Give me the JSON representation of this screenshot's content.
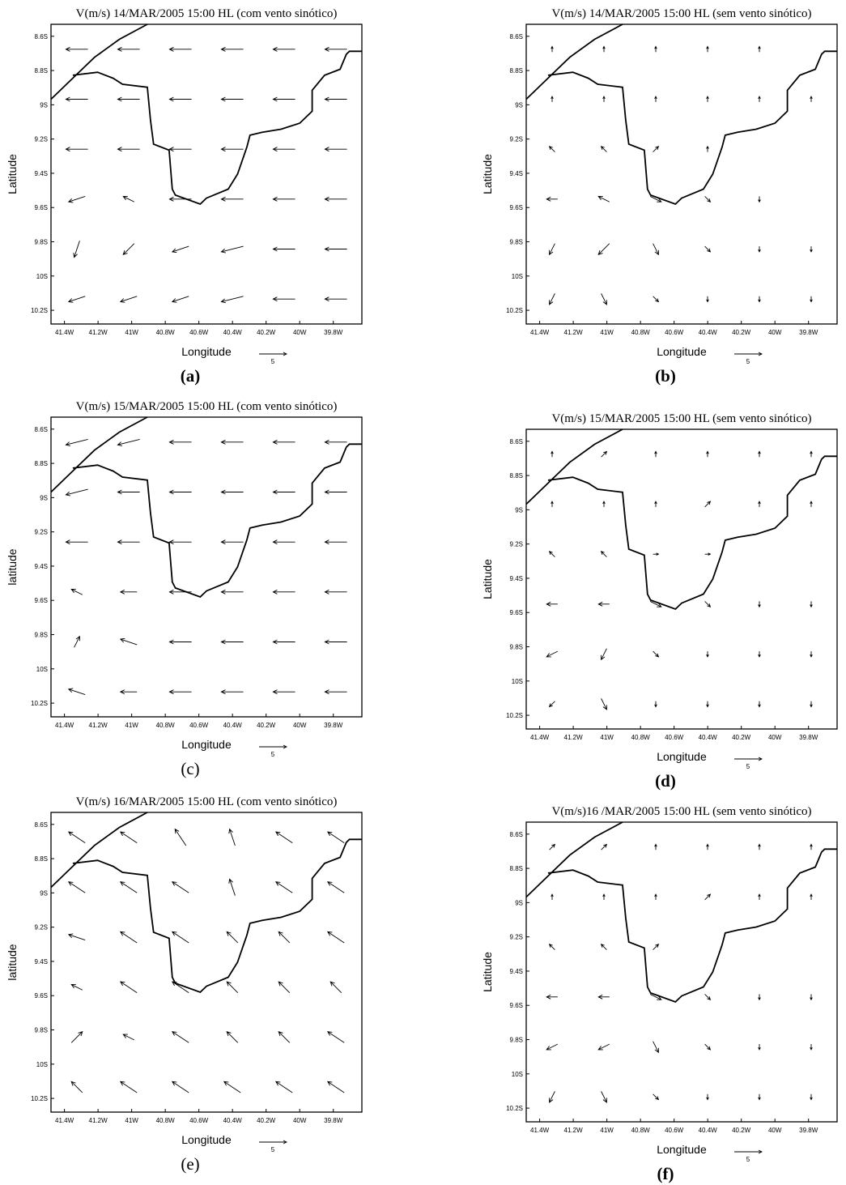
{
  "chart_data": [
    {
      "type": "quiver",
      "title": "V(m/s) 14/MAR/2005 15:00 HL (com vento sinótico)",
      "xlabel": "Longitude",
      "ylabel": "Latitude",
      "caption": "(a)",
      "xlim": [
        -41.48,
        -39.63
      ],
      "ylim": [
        -10.28,
        -8.53
      ],
      "xticks": [
        {
          "value": -41.4,
          "label": "41.4W"
        },
        {
          "value": -41.2,
          "label": "41.2W"
        },
        {
          "value": -41,
          "label": "41W"
        },
        {
          "value": -40.8,
          "label": "40.8W"
        },
        {
          "value": -40.6,
          "label": "40.6W"
        },
        {
          "value": -40.4,
          "label": "40.4W"
        },
        {
          "value": -40.2,
          "label": "40.2W"
        },
        {
          "value": -40,
          "label": "40W"
        },
        {
          "value": -39.8,
          "label": "39.8W"
        }
      ],
      "yticks": [
        {
          "value": -8.6,
          "label": "8.6S"
        },
        {
          "value": -8.8,
          "label": "8.8S"
        },
        {
          "value": -9,
          "label": "9S"
        },
        {
          "value": -9.2,
          "label": "9.2S"
        },
        {
          "value": -9.4,
          "label": "9.4S"
        },
        {
          "value": -9.6,
          "label": "9.6S"
        },
        {
          "value": -9.8,
          "label": "9.8S"
        },
        {
          "value": -10,
          "label": "10S"
        },
        {
          "value": -10.2,
          "label": "10.2S"
        }
      ],
      "ref_vector": 5,
      "u": [
        [
          -4,
          -4,
          -4,
          -4,
          -4,
          -4
        ],
        [
          -4,
          -4,
          -4,
          -4,
          -4,
          -4
        ],
        [
          -4,
          -4,
          -4,
          -4,
          -4,
          -4
        ],
        [
          -3,
          -2,
          -4,
          -4,
          -4,
          -4
        ],
        [
          -1,
          -2,
          -3,
          -4,
          -4,
          -4
        ],
        [
          -3,
          -3,
          -3,
          -4,
          -4,
          -4
        ]
      ],
      "v": [
        [
          0,
          0,
          0,
          0,
          0,
          0
        ],
        [
          0,
          0,
          0,
          0,
          0,
          0
        ],
        [
          0,
          0,
          0,
          0,
          0,
          0
        ],
        [
          -1,
          1,
          0,
          0,
          0,
          0
        ],
        [
          -3,
          -2,
          -1,
          -1,
          0,
          0
        ],
        [
          -1,
          -1,
          -1,
          -1,
          0,
          0
        ]
      ]
    },
    {
      "type": "quiver",
      "title": "V(m/s) 14/MAR/2005 15:00 HL (sem vento sinótico)",
      "xlabel": "Longitude",
      "ylabel": "Latitude",
      "caption": "(b)",
      "xlim": [
        -41.48,
        -39.63
      ],
      "ylim": [
        -10.28,
        -8.53
      ],
      "xticks": [
        {
          "value": -41.4,
          "label": "41.4W"
        },
        {
          "value": -41.2,
          "label": "41.2W"
        },
        {
          "value": -41,
          "label": "41W"
        },
        {
          "value": -40.8,
          "label": "40.8W"
        },
        {
          "value": -40.6,
          "label": "40.6W"
        },
        {
          "value": -40.4,
          "label": "40.4W"
        },
        {
          "value": -40.2,
          "label": "40.2W"
        },
        {
          "value": -40,
          "label": "40W"
        },
        {
          "value": -39.8,
          "label": "39.8W"
        }
      ],
      "yticks": [
        {
          "value": -8.6,
          "label": "8.6S"
        },
        {
          "value": -8.8,
          "label": "8.8S"
        },
        {
          "value": -9,
          "label": "9S"
        },
        {
          "value": -9.2,
          "label": "9.2S"
        },
        {
          "value": -9.4,
          "label": "9.4S"
        },
        {
          "value": -9.6,
          "label": "9.6S"
        },
        {
          "value": -9.8,
          "label": "9.8S"
        },
        {
          "value": -10,
          "label": "10S"
        },
        {
          "value": -10.2,
          "label": "10.2S"
        }
      ],
      "ref_vector": 5,
      "u": [
        [
          0,
          0,
          0,
          0,
          0,
          0
        ],
        [
          0,
          0,
          0,
          0,
          0,
          0
        ],
        [
          -1,
          -1,
          1,
          0,
          0,
          0
        ],
        [
          -2,
          -2,
          2,
          1,
          0,
          0
        ],
        [
          -1,
          -2,
          1,
          1,
          0,
          0
        ],
        [
          -1,
          1,
          1,
          0,
          0,
          0
        ]
      ],
      "v": [
        [
          1,
          1,
          1,
          1,
          1,
          0
        ],
        [
          1,
          1,
          1,
          1,
          1,
          1
        ],
        [
          1,
          1,
          1,
          1,
          0,
          0
        ],
        [
          0,
          1,
          -1,
          -1,
          -1,
          0
        ],
        [
          -2,
          -2,
          -2,
          -1,
          -1,
          -1
        ],
        [
          -2,
          -2,
          -1,
          -1,
          -1,
          -1
        ]
      ]
    },
    {
      "type": "quiver",
      "title": "V(m/s) 15/MAR/2005 15:00 HL (com vento sinótico)",
      "xlabel": "Longitude",
      "ylabel": "latitude",
      "caption": "(c)",
      "xlim": [
        -41.48,
        -39.63
      ],
      "ylim": [
        -10.28,
        -8.53
      ],
      "xticks": [
        {
          "value": -41.4,
          "label": "41.4W"
        },
        {
          "value": -41.2,
          "label": "41.2W"
        },
        {
          "value": -41,
          "label": "41W"
        },
        {
          "value": -40.8,
          "label": "40.8W"
        },
        {
          "value": -40.6,
          "label": "40.6W"
        },
        {
          "value": -40.4,
          "label": "40.4W"
        },
        {
          "value": -40.2,
          "label": "40.2W"
        },
        {
          "value": -40,
          "label": "40W"
        },
        {
          "value": -39.8,
          "label": "39.8W"
        }
      ],
      "yticks": [
        {
          "value": -8.6,
          "label": "8.6S"
        },
        {
          "value": -8.8,
          "label": "8.8S"
        },
        {
          "value": -9,
          "label": "9S"
        },
        {
          "value": -9.2,
          "label": "9.2S"
        },
        {
          "value": -9.4,
          "label": "9.4S"
        },
        {
          "value": -9.6,
          "label": "9.6S"
        },
        {
          "value": -9.8,
          "label": "9.8S"
        },
        {
          "value": -10,
          "label": "10S"
        },
        {
          "value": -10.2,
          "label": "10.2S"
        }
      ],
      "ref_vector": 5,
      "u": [
        [
          -4,
          -4,
          -4,
          -4,
          -4,
          -4
        ],
        [
          -4,
          -4,
          -4,
          -4,
          -4,
          -4
        ],
        [
          -4,
          -4,
          -4,
          -4,
          -4,
          -4
        ],
        [
          -2,
          -3,
          -4,
          -4,
          -4,
          -4
        ],
        [
          1,
          -3,
          -4,
          -4,
          -4,
          -4
        ],
        [
          -3,
          -3,
          -4,
          -4,
          -4,
          -4
        ]
      ],
      "v": [
        [
          -1,
          -1,
          0,
          0,
          0,
          0
        ],
        [
          -1,
          0,
          0,
          0,
          0,
          0
        ],
        [
          0,
          0,
          0,
          0,
          0,
          0
        ],
        [
          1,
          0,
          0,
          0,
          0,
          0
        ],
        [
          2,
          1,
          0,
          0,
          0,
          0
        ],
        [
          1,
          0,
          0,
          0,
          0,
          0
        ]
      ]
    },
    {
      "type": "quiver",
      "title": "V(m/s) 15/MAR/2005 15:00 HL (sem vento sinótico)",
      "xlabel": "Longitude",
      "ylabel": "Latitude",
      "caption": "(d)",
      "xlim": [
        -41.48,
        -39.63
      ],
      "ylim": [
        -10.28,
        -8.53
      ],
      "xticks": [
        {
          "value": -41.4,
          "label": "41.4W"
        },
        {
          "value": -41.2,
          "label": "41.2W"
        },
        {
          "value": -41,
          "label": "41W"
        },
        {
          "value": -40.8,
          "label": "40.8W"
        },
        {
          "value": -40.6,
          "label": "40.6W"
        },
        {
          "value": -40.4,
          "label": "40.4W"
        },
        {
          "value": -40.2,
          "label": "40.2W"
        },
        {
          "value": -40,
          "label": "40W"
        },
        {
          "value": -39.8,
          "label": "39.8W"
        }
      ],
      "yticks": [
        {
          "value": -8.6,
          "label": "8.6S"
        },
        {
          "value": -8.8,
          "label": "8.8S"
        },
        {
          "value": -9,
          "label": "9S"
        },
        {
          "value": -9.2,
          "label": "9.2S"
        },
        {
          "value": -9.4,
          "label": "9.4S"
        },
        {
          "value": -9.6,
          "label": "9.6S"
        },
        {
          "value": -9.8,
          "label": "9.8S"
        },
        {
          "value": -10,
          "label": "10S"
        },
        {
          "value": -10.2,
          "label": "10.2S"
        }
      ],
      "ref_vector": 5,
      "u": [
        [
          0,
          1,
          0,
          0,
          0,
          0
        ],
        [
          0,
          0,
          0,
          1,
          0,
          0
        ],
        [
          -1,
          -1,
          1,
          1,
          0,
          0
        ],
        [
          -2,
          -2,
          2,
          1,
          0,
          0
        ],
        [
          -2,
          -1,
          1,
          0,
          0,
          0
        ],
        [
          -1,
          1,
          0,
          0,
          0,
          0
        ]
      ],
      "v": [
        [
          1,
          1,
          1,
          1,
          1,
          1
        ],
        [
          1,
          1,
          1,
          1,
          1,
          1
        ],
        [
          1,
          1,
          0,
          0,
          0,
          0
        ],
        [
          0,
          0,
          -1,
          -1,
          -1,
          -1
        ],
        [
          -1,
          -2,
          -1,
          -1,
          -1,
          -1
        ],
        [
          -1,
          -2,
          -1,
          -1,
          -1,
          -1
        ]
      ]
    },
    {
      "type": "quiver",
      "title": "V(m/s) 16/MAR/2005 15:00 HL (com vento sinótico)",
      "xlabel": "Longitude",
      "ylabel": "latitude",
      "caption": "(e)",
      "xlim": [
        -41.48,
        -39.63
      ],
      "ylim": [
        -10.28,
        -8.53
      ],
      "xticks": [
        {
          "value": -41.4,
          "label": "41.4W"
        },
        {
          "value": -41.2,
          "label": "41.2W"
        },
        {
          "value": -41,
          "label": "41W"
        },
        {
          "value": -40.8,
          "label": "40.8W"
        },
        {
          "value": -40.6,
          "label": "40.6W"
        },
        {
          "value": -40.4,
          "label": "40.4W"
        },
        {
          "value": -40.2,
          "label": "40.2W"
        },
        {
          "value": -40,
          "label": "40W"
        },
        {
          "value": -39.8,
          "label": "39.8W"
        }
      ],
      "yticks": [
        {
          "value": -8.6,
          "label": "8.6S"
        },
        {
          "value": -8.8,
          "label": "8.8S"
        },
        {
          "value": -9,
          "label": "9S"
        },
        {
          "value": -9.2,
          "label": "9.2S"
        },
        {
          "value": -9.4,
          "label": "9.4S"
        },
        {
          "value": -9.6,
          "label": "9.6S"
        },
        {
          "value": -9.8,
          "label": "9.8S"
        },
        {
          "value": -10,
          "label": "10S"
        },
        {
          "value": -10.2,
          "label": "10.2S"
        }
      ],
      "ref_vector": 5,
      "u": [
        [
          -3,
          -3,
          -2,
          -1,
          -3,
          -3
        ],
        [
          -3,
          -3,
          -3,
          -1,
          -3,
          -3
        ],
        [
          -3,
          -3,
          -3,
          -2,
          -2,
          -3
        ],
        [
          -2,
          -3,
          -3,
          -2,
          -2,
          -2
        ],
        [
          2,
          -2,
          -3,
          -2,
          -2,
          -3
        ],
        [
          -2,
          -3,
          -3,
          -3,
          -3,
          -3
        ]
      ],
      "v": [
        [
          2,
          2,
          3,
          3,
          2,
          2
        ],
        [
          2,
          2,
          2,
          3,
          2,
          2
        ],
        [
          1,
          2,
          2,
          2,
          2,
          2
        ],
        [
          1,
          2,
          2,
          2,
          2,
          2
        ],
        [
          2,
          1,
          2,
          2,
          2,
          2
        ],
        [
          2,
          2,
          2,
          2,
          2,
          2
        ]
      ]
    },
    {
      "type": "quiver",
      "title": "V(m/s)16 /MAR/2005 15:00 HL (sem vento sinótico)",
      "xlabel": "Longitude",
      "ylabel": "Latitude",
      "caption": "(f)",
      "xlim": [
        -41.48,
        -39.63
      ],
      "ylim": [
        -10.28,
        -8.53
      ],
      "xticks": [
        {
          "value": -41.4,
          "label": "41.4W"
        },
        {
          "value": -41.2,
          "label": "41.2W"
        },
        {
          "value": -41,
          "label": "41W"
        },
        {
          "value": -40.8,
          "label": "40.8W"
        },
        {
          "value": -40.6,
          "label": "40.6W"
        },
        {
          "value": -40.4,
          "label": "40.4W"
        },
        {
          "value": -40.2,
          "label": "40.2W"
        },
        {
          "value": -40,
          "label": "40W"
        },
        {
          "value": -39.8,
          "label": "39.8W"
        }
      ],
      "yticks": [
        {
          "value": -8.6,
          "label": "8.6S"
        },
        {
          "value": -8.8,
          "label": "8.8S"
        },
        {
          "value": -9,
          "label": "9S"
        },
        {
          "value": -9.2,
          "label": "9.2S"
        },
        {
          "value": -9.4,
          "label": "9.4S"
        },
        {
          "value": -9.6,
          "label": "9.6S"
        },
        {
          "value": -9.8,
          "label": "9.8S"
        },
        {
          "value": -10,
          "label": "10S"
        },
        {
          "value": -10.2,
          "label": "10.2S"
        }
      ],
      "ref_vector": 5,
      "u": [
        [
          1,
          1,
          0,
          0,
          0,
          0
        ],
        [
          0,
          0,
          0,
          1,
          0,
          0
        ],
        [
          -1,
          -1,
          1,
          0,
          0,
          0
        ],
        [
          -2,
          -2,
          2,
          1,
          0,
          0
        ],
        [
          -2,
          -2,
          1,
          1,
          0,
          0
        ],
        [
          -1,
          1,
          1,
          0,
          0,
          0
        ]
      ],
      "v": [
        [
          1,
          1,
          1,
          1,
          1,
          1
        ],
        [
          1,
          1,
          1,
          1,
          1,
          1
        ],
        [
          1,
          1,
          1,
          0,
          0,
          0
        ],
        [
          0,
          0,
          -1,
          -1,
          -1,
          -1
        ],
        [
          -1,
          -1,
          -2,
          -1,
          -1,
          -1
        ],
        [
          -2,
          -2,
          -1,
          -1,
          -1,
          -1
        ]
      ]
    }
  ]
}
